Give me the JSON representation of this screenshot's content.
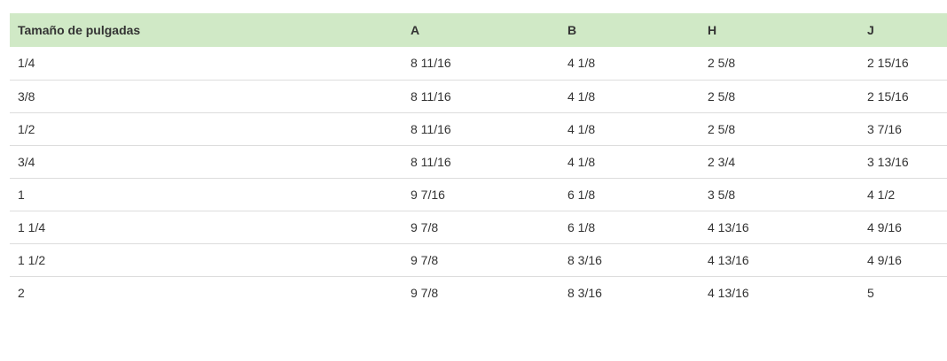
{
  "table": {
    "headers": [
      "Tamaño de pulgadas",
      "A",
      "B",
      "H",
      "J"
    ],
    "rows": [
      [
        "1/4",
        "8 11/16",
        "4 1/8",
        "2 5/8",
        "2 15/16"
      ],
      [
        "3/8",
        "8 11/16",
        "4 1/8",
        "2 5/8",
        "2 15/16"
      ],
      [
        "1/2",
        "8 11/16",
        "4 1/8",
        "2 5/8",
        "3 7/16"
      ],
      [
        "3/4",
        "8 11/16",
        "4 1/8",
        "2 3/4",
        "3 13/16"
      ],
      [
        "1",
        "9 7/16",
        "6 1/8",
        "3 5/8",
        "4 1/2"
      ],
      [
        "1 1/4",
        "9 7/8",
        "6 1/8",
        "4 13/16",
        "4 9/16"
      ],
      [
        "1 1/2",
        "9 7/8",
        "8 3/16",
        "4 13/16",
        "4 9/16"
      ],
      [
        "2",
        "9 7/8",
        "8 3/16",
        "4 13/16",
        "5"
      ]
    ]
  },
  "colors": {
    "header_bg": "#d0e9c6",
    "row_border": "#dddddd",
    "text": "#333333"
  }
}
